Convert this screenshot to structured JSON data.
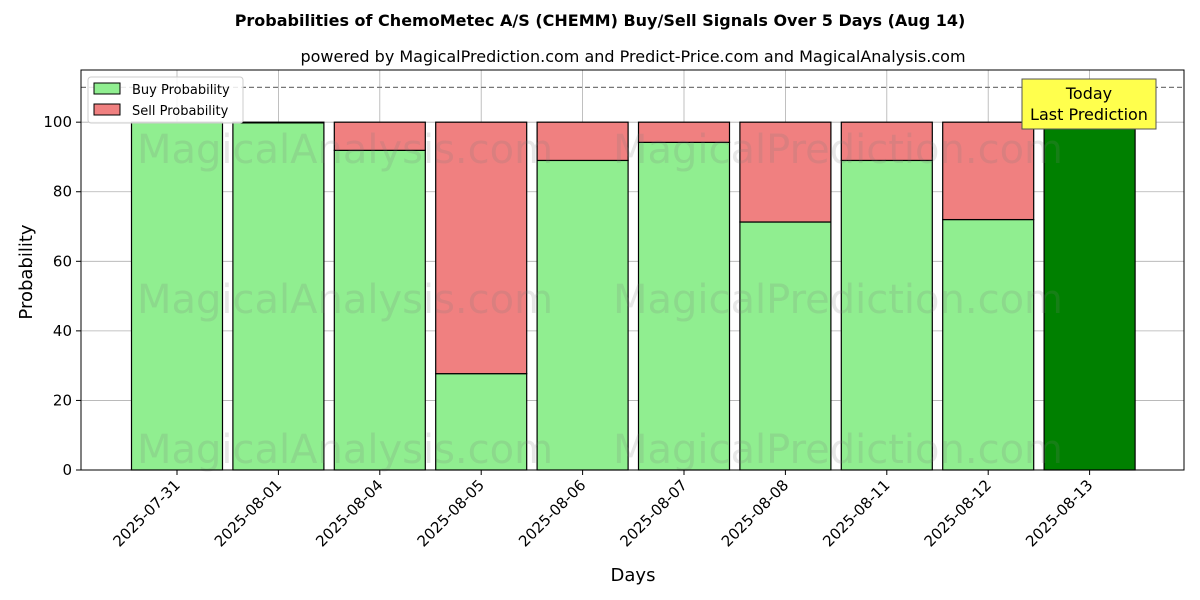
{
  "chart_data": {
    "type": "bar",
    "stacked": true,
    "title": "Probabilities of ChemoMetec A/S (CHEMM) Buy/Sell Signals Over 5 Days (Aug 14)",
    "subtitle": "powered by MagicalPrediction.com and Predict-Price.com and MagicalAnalysis.com",
    "xlabel": "Days",
    "ylabel": "Probability",
    "ylim": [
      0,
      115
    ],
    "yticks": [
      0,
      20,
      40,
      60,
      80,
      100
    ],
    "grid": true,
    "legend_position": "top-left",
    "reference_line": 110,
    "categories": [
      "2025-07-31",
      "2025-08-01",
      "2025-08-04",
      "2025-08-05",
      "2025-08-06",
      "2025-08-07",
      "2025-08-08",
      "2025-08-11",
      "2025-08-12",
      "2025-08-13"
    ],
    "series": [
      {
        "name": "Buy Probability",
        "color": "#90ee90",
        "values": [
          100,
          99.8,
          91.9,
          27.7,
          89,
          94.2,
          71.3,
          89,
          72,
          100
        ]
      },
      {
        "name": "Sell Probability",
        "color": "#f08080",
        "values": [
          0,
          0.2,
          8.1,
          72.3,
          11,
          5.8,
          28.7,
          11,
          28,
          0
        ]
      }
    ],
    "highlight": {
      "index": 9,
      "color": "#008000"
    },
    "annotation": {
      "lines": [
        "Today",
        "Last Prediction"
      ],
      "background": "#ffff4d"
    },
    "watermarks": [
      "MagicalAnalysis.com",
      "MagicalPrediction.com",
      "MagicalAnalysis.com",
      "MagicalPrediction.com",
      "MagicalAnalysis.com",
      "MagicalPrediction.com"
    ]
  }
}
